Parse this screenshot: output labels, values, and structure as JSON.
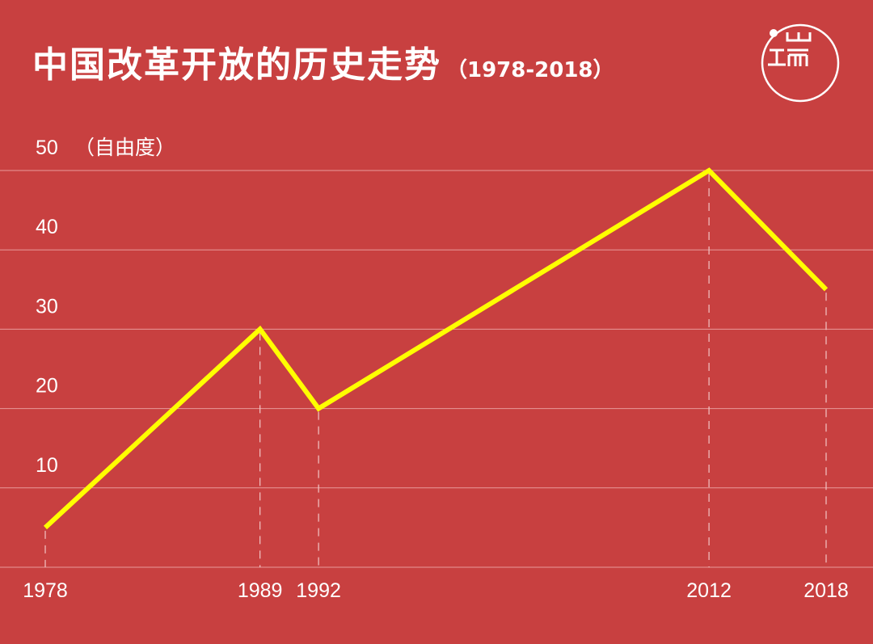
{
  "header": {
    "title": "中国改革开放的历史走势",
    "subtitle": "（1978-2018）",
    "logo_text": "山 工而"
  },
  "colors": {
    "background": "#c84040",
    "line": "#ffff00",
    "grid": "#e89a9a",
    "text": "#ffffff"
  },
  "chart_data": {
    "type": "line",
    "title": "中国改革开放的历史走势",
    "subtitle": "（1978-2018）",
    "ylabel": "（自由度）",
    "xlabel": "",
    "x": [
      1978,
      1989,
      1992,
      2012,
      2018
    ],
    "series": [
      {
        "values": [
          5,
          30,
          20,
          50,
          35
        ]
      }
    ],
    "y_ticks": [
      10,
      20,
      30,
      40,
      50
    ],
    "x_tick_labels": [
      "1978",
      "1989",
      "1992",
      "2012",
      "2018"
    ],
    "ylim": [
      0,
      50
    ],
    "xlim": [
      1978,
      2018
    ],
    "grid": true,
    "dashed_guides_at": [
      1978,
      1989,
      1992,
      2012,
      2018
    ]
  }
}
